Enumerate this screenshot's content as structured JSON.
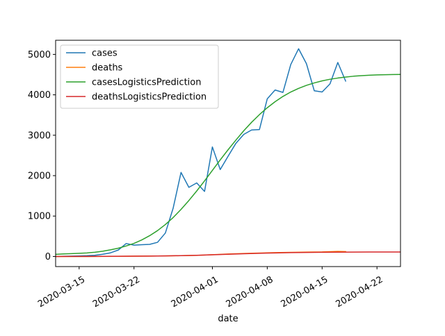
{
  "chart_data": {
    "type": "line",
    "title": "",
    "xlabel": "date",
    "ylabel": "",
    "x_range": [
      "2020-03-12",
      "2020-04-25"
    ],
    "xlim": [
      "2020-03-12",
      "2020-04-25"
    ],
    "ylim": [
      -250,
      5350
    ],
    "x_ticks": [
      {
        "date": "2020-03-15",
        "label": "2020-03-15"
      },
      {
        "date": "2020-03-22",
        "label": "2020-03-22"
      },
      {
        "date": "2020-04-01",
        "label": "2020-04-01"
      },
      {
        "date": "2020-04-08",
        "label": "2020-04-08"
      },
      {
        "date": "2020-04-15",
        "label": "2020-04-15"
      },
      {
        "date": "2020-04-22",
        "label": "2020-04-22"
      }
    ],
    "y_ticks": [
      {
        "value": 0,
        "label": "0"
      },
      {
        "value": 1000,
        "label": "1000"
      },
      {
        "value": 2000,
        "label": "2000"
      },
      {
        "value": 3000,
        "label": "3000"
      },
      {
        "value": 4000,
        "label": "4000"
      },
      {
        "value": 5000,
        "label": "5000"
      }
    ],
    "grid": false,
    "legend_position": "top-left",
    "series": [
      {
        "name": "cases",
        "color": "#1f77b4",
        "points": [
          [
            "2020-03-12",
            0
          ],
          [
            "2020-03-13",
            5
          ],
          [
            "2020-03-14",
            10
          ],
          [
            "2020-03-15",
            15
          ],
          [
            "2020-03-16",
            20
          ],
          [
            "2020-03-17",
            30
          ],
          [
            "2020-03-18",
            55
          ],
          [
            "2020-03-19",
            90
          ],
          [
            "2020-03-20",
            160
          ],
          [
            "2020-03-21",
            320
          ],
          [
            "2020-03-22",
            280
          ],
          [
            "2020-03-23",
            290
          ],
          [
            "2020-03-24",
            300
          ],
          [
            "2020-03-25",
            350
          ],
          [
            "2020-03-26",
            580
          ],
          [
            "2020-03-27",
            1200
          ],
          [
            "2020-03-28",
            2080
          ],
          [
            "2020-03-29",
            1710
          ],
          [
            "2020-03-30",
            1820
          ],
          [
            "2020-03-31",
            1610
          ],
          [
            "2020-04-01",
            2710
          ],
          [
            "2020-04-02",
            2150
          ],
          [
            "2020-04-03",
            2480
          ],
          [
            "2020-04-04",
            2800
          ],
          [
            "2020-04-05",
            3020
          ],
          [
            "2020-04-06",
            3130
          ],
          [
            "2020-04-07",
            3140
          ],
          [
            "2020-04-08",
            3900
          ],
          [
            "2020-04-09",
            4120
          ],
          [
            "2020-04-10",
            4060
          ],
          [
            "2020-04-11",
            4750
          ],
          [
            "2020-04-12",
            5140
          ],
          [
            "2020-04-13",
            4770
          ],
          [
            "2020-04-14",
            4100
          ],
          [
            "2020-04-15",
            4070
          ],
          [
            "2020-04-16",
            4270
          ],
          [
            "2020-04-17",
            4800
          ],
          [
            "2020-04-18",
            4340
          ]
        ]
      },
      {
        "name": "deaths",
        "color": "#ff7f0e",
        "points": [
          [
            "2020-03-12",
            0
          ],
          [
            "2020-03-14",
            0
          ],
          [
            "2020-03-16",
            0
          ],
          [
            "2020-03-18",
            1
          ],
          [
            "2020-03-20",
            3
          ],
          [
            "2020-03-22",
            7
          ],
          [
            "2020-03-24",
            10
          ],
          [
            "2020-03-26",
            14
          ],
          [
            "2020-03-28",
            20
          ],
          [
            "2020-03-30",
            28
          ],
          [
            "2020-04-01",
            45
          ],
          [
            "2020-04-03",
            62
          ],
          [
            "2020-04-05",
            75
          ],
          [
            "2020-04-07",
            85
          ],
          [
            "2020-04-09",
            95
          ],
          [
            "2020-04-11",
            103
          ],
          [
            "2020-04-13",
            108
          ],
          [
            "2020-04-15",
            112
          ],
          [
            "2020-04-17",
            125
          ],
          [
            "2020-04-18",
            122
          ]
        ]
      },
      {
        "name": "casesLogisticsPrediction",
        "color": "#2ca02c",
        "points": [
          [
            "2020-03-12",
            52
          ],
          [
            "2020-03-13",
            64
          ],
          [
            "2020-03-14",
            70
          ],
          [
            "2020-03-15",
            78
          ],
          [
            "2020-03-16",
            88
          ],
          [
            "2020-03-17",
            104
          ],
          [
            "2020-03-18",
            130
          ],
          [
            "2020-03-19",
            165
          ],
          [
            "2020-03-20",
            205
          ],
          [
            "2020-03-21",
            260
          ],
          [
            "2020-03-22",
            325
          ],
          [
            "2020-03-23",
            410
          ],
          [
            "2020-03-24",
            515
          ],
          [
            "2020-03-25",
            640
          ],
          [
            "2020-03-26",
            790
          ],
          [
            "2020-03-27",
            965
          ],
          [
            "2020-03-28",
            1165
          ],
          [
            "2020-03-29",
            1385
          ],
          [
            "2020-03-30",
            1620
          ],
          [
            "2020-03-31",
            1870
          ],
          [
            "2020-04-01",
            2130
          ],
          [
            "2020-04-02",
            2390
          ],
          [
            "2020-04-03",
            2640
          ],
          [
            "2020-04-04",
            2880
          ],
          [
            "2020-04-05",
            3110
          ],
          [
            "2020-04-06",
            3320
          ],
          [
            "2020-04-07",
            3510
          ],
          [
            "2020-04-08",
            3680
          ],
          [
            "2020-04-09",
            3830
          ],
          [
            "2020-04-10",
            3960
          ],
          [
            "2020-04-11",
            4070
          ],
          [
            "2020-04-12",
            4160
          ],
          [
            "2020-04-13",
            4235
          ],
          [
            "2020-04-14",
            4295
          ],
          [
            "2020-04-15",
            4345
          ],
          [
            "2020-04-16",
            4385
          ],
          [
            "2020-04-17",
            4415
          ],
          [
            "2020-04-18",
            4440
          ],
          [
            "2020-04-19",
            4460
          ],
          [
            "2020-04-20",
            4475
          ],
          [
            "2020-04-21",
            4485
          ],
          [
            "2020-04-22",
            4493
          ],
          [
            "2020-04-23",
            4498
          ],
          [
            "2020-04-24",
            4502
          ],
          [
            "2020-04-25",
            4505
          ]
        ]
      },
      {
        "name": "deathsLogisticsPrediction",
        "color": "#d62728",
        "points": [
          [
            "2020-03-12",
            0
          ],
          [
            "2020-03-14",
            1
          ],
          [
            "2020-03-16",
            2
          ],
          [
            "2020-03-18",
            3
          ],
          [
            "2020-03-20",
            5
          ],
          [
            "2020-03-22",
            7
          ],
          [
            "2020-03-24",
            10
          ],
          [
            "2020-03-26",
            15
          ],
          [
            "2020-03-28",
            21
          ],
          [
            "2020-03-30",
            30
          ],
          [
            "2020-04-01",
            42
          ],
          [
            "2020-04-03",
            55
          ],
          [
            "2020-04-05",
            68
          ],
          [
            "2020-04-07",
            79
          ],
          [
            "2020-04-09",
            88
          ],
          [
            "2020-04-11",
            95
          ],
          [
            "2020-04-13",
            100
          ],
          [
            "2020-04-15",
            104
          ],
          [
            "2020-04-17",
            107
          ],
          [
            "2020-04-19",
            109
          ],
          [
            "2020-04-21",
            110
          ],
          [
            "2020-04-23",
            111
          ],
          [
            "2020-04-25",
            111
          ]
        ]
      }
    ]
  }
}
